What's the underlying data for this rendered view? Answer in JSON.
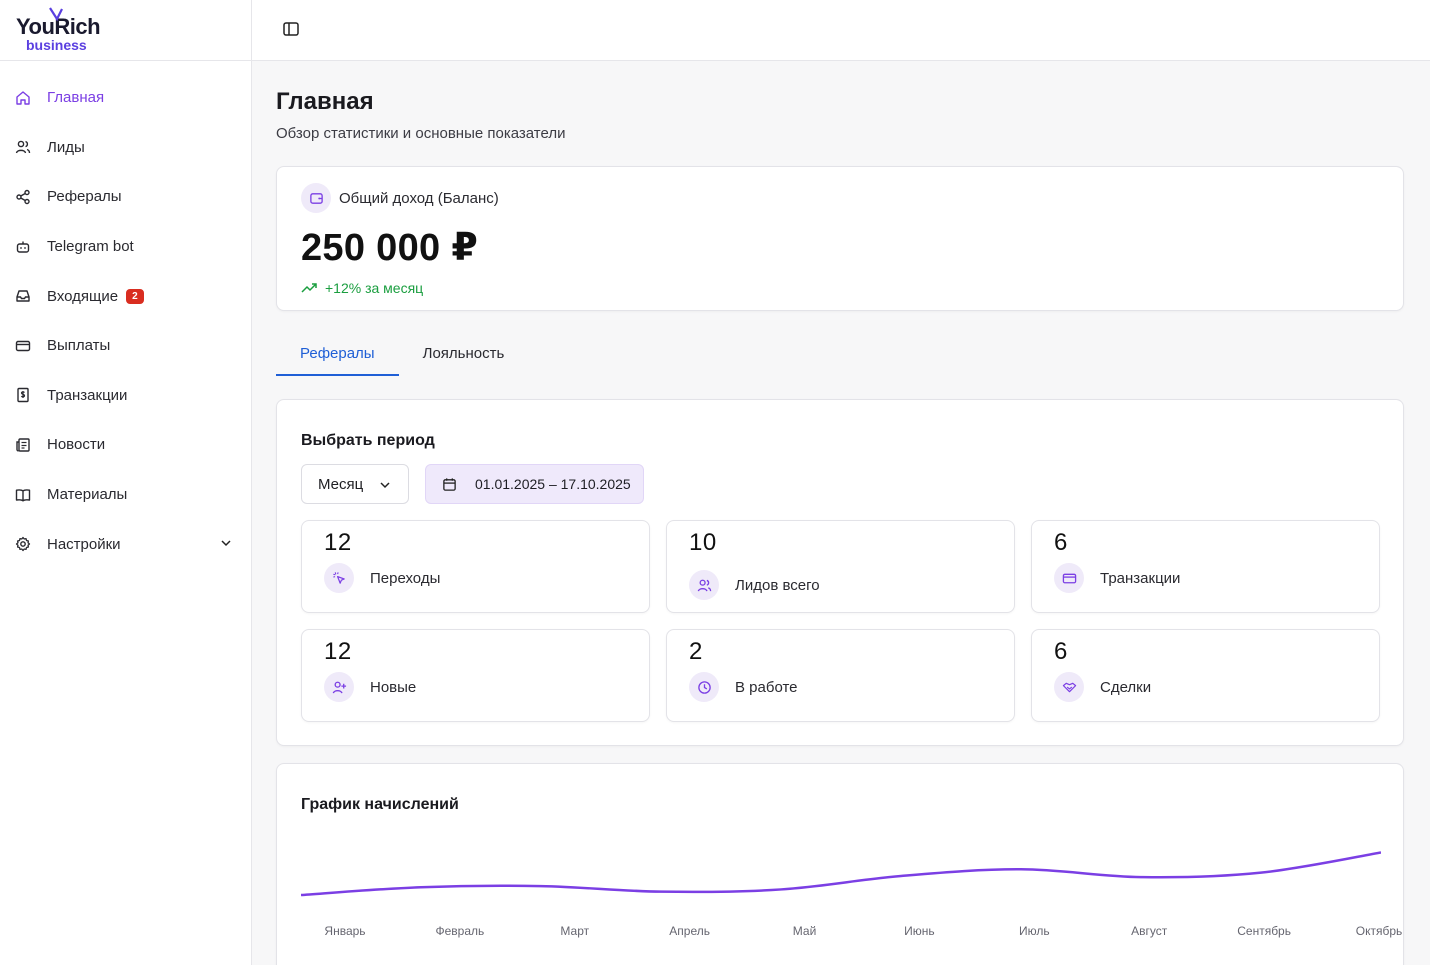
{
  "brand": {
    "name": "YouRich",
    "sub": "business",
    "accent": "#7b3fe4"
  },
  "sidebar": {
    "items": [
      {
        "label": "Главная",
        "icon": "home-icon",
        "active": true
      },
      {
        "label": "Лиды",
        "icon": "users-icon"
      },
      {
        "label": "Рефералы",
        "icon": "share-icon"
      },
      {
        "label": "Telegram bot",
        "icon": "bot-icon"
      },
      {
        "label": "Входящие",
        "icon": "inbox-icon",
        "badge": "2"
      },
      {
        "label": "Выплаты",
        "icon": "credit-card-icon"
      },
      {
        "label": "Транзакции",
        "icon": "receipt-icon"
      },
      {
        "label": "Новости",
        "icon": "newspaper-icon"
      },
      {
        "label": "Материалы",
        "icon": "book-icon"
      },
      {
        "label": "Настройки",
        "icon": "gear-icon",
        "expandable": true
      }
    ]
  },
  "page": {
    "title": "Главная",
    "subtitle": "Обзор статистики и основные показатели"
  },
  "balance": {
    "label": "Общий доход (Баланс)",
    "value": "250 000 ₽",
    "growth": "+12% за месяц",
    "growth_color": "#1a9e3f"
  },
  "tabs": [
    {
      "label": "Рефералы",
      "active": true
    },
    {
      "label": "Лояльность",
      "active": false
    }
  ],
  "period": {
    "title": "Выбрать период",
    "select_value": "Месяц",
    "date_range": "01.01.2025 – 17.10.2025"
  },
  "stats": [
    {
      "value": "12",
      "label": "Переходы",
      "icon": "cursor-click-icon"
    },
    {
      "value": "10",
      "label": "Лидов всего",
      "icon": "users-icon"
    },
    {
      "value": "6",
      "label": "Транзакции",
      "icon": "credit-card-icon"
    },
    {
      "value": "12",
      "label": "Новые",
      "icon": "user-plus-icon"
    },
    {
      "value": "2",
      "label": "В работе",
      "icon": "clock-icon"
    },
    {
      "value": "6",
      "label": "Сделки",
      "icon": "handshake-icon"
    }
  ],
  "chart_data": {
    "type": "line",
    "title": "График начислений",
    "categories": [
      "Январь",
      "Февраль",
      "Март",
      "Апрель",
      "Май",
      "Июнь",
      "Июль",
      "Август",
      "Сентябрь",
      "Октябрь"
    ],
    "series": [
      {
        "values": [
          8,
          15,
          16,
          11,
          13,
          25,
          31,
          24,
          28,
          46
        ],
        "color": "#7b3fe4"
      }
    ],
    "ylim": [
      0,
      100
    ],
    "grid": false,
    "legend": "none"
  }
}
